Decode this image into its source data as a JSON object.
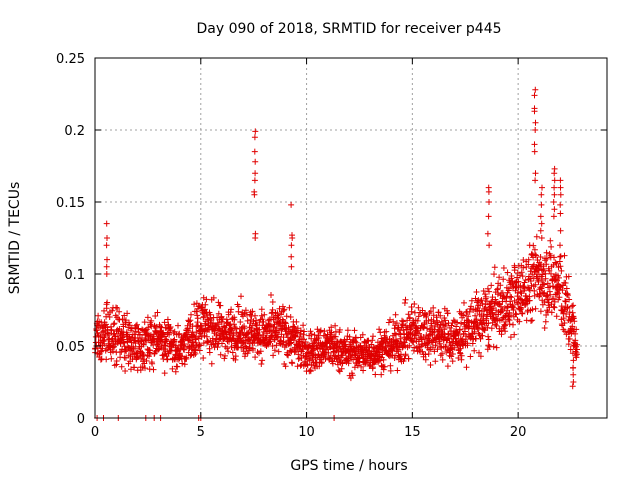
{
  "chart_data": {
    "type": "scatter",
    "title": "Day 090 of 2018, SRMTID for receiver p445",
    "xlabel": "GPS time / hours",
    "ylabel": "SRMTID / TECUs",
    "xlim": [
      0,
      24.2
    ],
    "ylim": [
      0,
      0.25
    ],
    "xticks": [
      0,
      5,
      10,
      15,
      20
    ],
    "xtick_labels": [
      "0",
      "5",
      "10",
      "15",
      "20"
    ],
    "yticks": [
      0,
      0.05,
      0.1,
      0.15,
      0.2,
      0.25
    ],
    "ytick_labels": [
      "0",
      "0.05",
      "0.1",
      "0.15",
      "0.2",
      "0.25"
    ],
    "grid": true,
    "marker": "+",
    "color": "#e00000",
    "zero_points_x": [
      0.1,
      0.4,
      1.1,
      2.4,
      2.8,
      3.1,
      4.9,
      5.0,
      11.3
    ],
    "series": [
      {
        "name": "SRMTID",
        "profile_x": [
          0,
          1,
          2,
          3,
          4,
          5,
          6,
          7,
          8,
          9,
          10,
          11,
          12,
          13,
          14,
          15,
          16,
          17,
          18,
          19,
          20,
          21,
          22,
          22.8
        ],
        "profile_mean": [
          0.055,
          0.06,
          0.05,
          0.055,
          0.048,
          0.065,
          0.06,
          0.06,
          0.058,
          0.06,
          0.045,
          0.05,
          0.045,
          0.045,
          0.05,
          0.06,
          0.06,
          0.055,
          0.065,
          0.075,
          0.085,
          0.1,
          0.09,
          0.05
        ],
        "profile_spread": [
          0.02,
          0.03,
          0.022,
          0.022,
          0.02,
          0.025,
          0.022,
          0.022,
          0.022,
          0.025,
          0.018,
          0.02,
          0.018,
          0.018,
          0.02,
          0.025,
          0.025,
          0.022,
          0.028,
          0.03,
          0.03,
          0.035,
          0.04,
          0.025
        ],
        "samples_per_hour": 105,
        "clusters": [
          {
            "x": 0.55,
            "values": [
              0.135,
              0.125,
              0.12,
              0.11,
              0.105,
              0.1
            ]
          },
          {
            "x": 7.55,
            "values": [
              0.199,
              0.195,
              0.185,
              0.178,
              0.17,
              0.165,
              0.157,
              0.155,
              0.128,
              0.125
            ]
          },
          {
            "x": 9.3,
            "values": [
              0.148,
              0.127,
              0.125,
              0.12,
              0.112,
              0.105
            ]
          },
          {
            "x": 18.6,
            "values": [
              0.16,
              0.157,
              0.15,
              0.14,
              0.128,
              0.12
            ]
          },
          {
            "x": 20.8,
            "values": [
              0.228,
              0.224,
              0.215,
              0.213,
              0.205,
              0.2,
              0.19,
              0.185,
              0.17,
              0.165
            ]
          },
          {
            "x": 21.1,
            "values": [
              0.16,
              0.155,
              0.148,
              0.14,
              0.135,
              0.13,
              0.125
            ]
          },
          {
            "x": 21.7,
            "values": [
              0.173,
              0.17,
              0.165,
              0.16,
              0.155,
              0.15,
              0.145,
              0.14
            ]
          },
          {
            "x": 22.0,
            "values": [
              0.165,
              0.16,
              0.155,
              0.148,
              0.142,
              0.13,
              0.12
            ]
          },
          {
            "x": 22.6,
            "values": [
              0.06,
              0.05,
              0.045,
              0.04,
              0.035,
              0.03,
              0.025,
              0.022
            ]
          }
        ]
      }
    ]
  }
}
